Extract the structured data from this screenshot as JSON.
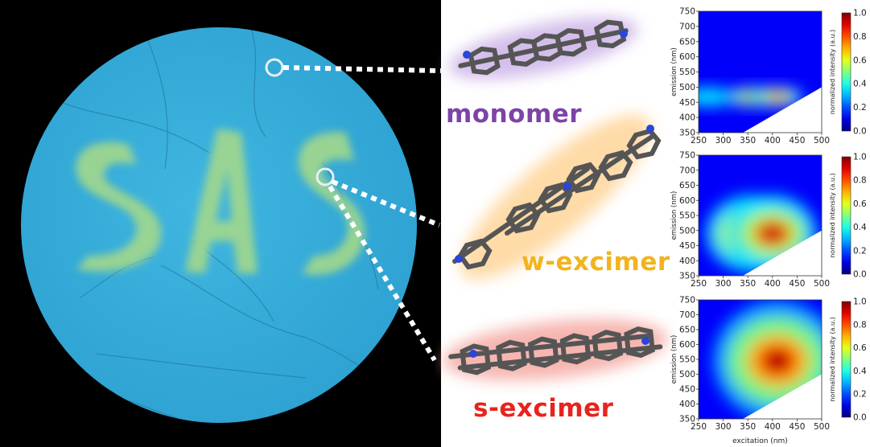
{
  "photo": {
    "letters": [
      "S",
      "A",
      "S"
    ],
    "colors": {
      "background": "#000000",
      "disk": "#34aedb",
      "film": "#9bd58a"
    }
  },
  "states": [
    {
      "label": "monomer",
      "color": "#7d43a8"
    },
    {
      "label": "w-excimer",
      "color": "#f2b31c"
    },
    {
      "label": "s-excimer",
      "color": "#e8231e"
    }
  ],
  "chart_data": [
    {
      "type": "heatmap",
      "state": "monomer",
      "x_ticks": [
        250,
        300,
        350,
        400,
        450,
        500
      ],
      "y_ticks": [
        350,
        400,
        450,
        500,
        550,
        600,
        650,
        700,
        750
      ],
      "xlim": [
        250,
        500
      ],
      "ylim": [
        350,
        750
      ],
      "ylabel": "emission (nm)",
      "colorbar_label": "normalized intensity (a.u.)",
      "colorbar_ticks": [
        0.0,
        0.2,
        0.4,
        0.6,
        0.8,
        1.0
      ],
      "peaks": [
        {
          "excitation": 360,
          "emission": 468,
          "intensity": 1.0
        },
        {
          "excitation": 410,
          "emission": 468,
          "intensity": 0.85
        },
        {
          "excitation": 270,
          "emission": 468,
          "intensity": 0.35
        }
      ]
    },
    {
      "type": "heatmap",
      "state": "w-excimer",
      "x_ticks": [
        250,
        300,
        350,
        400,
        450,
        500
      ],
      "y_ticks": [
        350,
        400,
        450,
        500,
        550,
        600,
        650,
        700,
        750
      ],
      "xlim": [
        250,
        500
      ],
      "ylim": [
        350,
        750
      ],
      "ylabel": "emission (nm)",
      "colorbar_label": "normalized intensity (a.u.)",
      "colorbar_ticks": [
        0.0,
        0.2,
        0.4,
        0.6,
        0.8,
        1.0
      ],
      "peaks": [
        {
          "excitation": 355,
          "emission": 490,
          "intensity": 1.0
        },
        {
          "excitation": 400,
          "emission": 490,
          "intensity": 0.95
        }
      ]
    },
    {
      "type": "heatmap",
      "state": "s-excimer",
      "x_ticks": [
        250,
        300,
        350,
        400,
        450,
        500
      ],
      "y_ticks": [
        350,
        400,
        450,
        500,
        550,
        600,
        650,
        700,
        750
      ],
      "xlim": [
        250,
        500
      ],
      "ylim": [
        350,
        750
      ],
      "xlabel": "excitation (nm)",
      "ylabel": "emission (nm)",
      "colorbar_label": "normalized intensity (a.u.)",
      "colorbar_ticks": [
        0.0,
        0.2,
        0.4,
        0.6,
        0.8,
        1.0
      ],
      "peaks": [
        {
          "excitation": 410,
          "emission": 545,
          "intensity": 1.0
        }
      ]
    }
  ]
}
